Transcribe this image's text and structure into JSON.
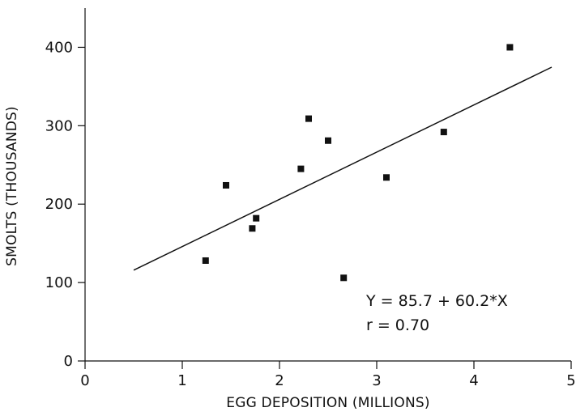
{
  "chart_data": {
    "type": "scatter",
    "title": "",
    "xlabel": "EGG DEPOSITION (MILLIONS)",
    "ylabel": "SMOLTS (THOUSANDS)",
    "xlim": [
      0,
      5
    ],
    "ylim": [
      0,
      450
    ],
    "x_ticks": [
      0,
      1,
      2,
      3,
      4,
      5
    ],
    "y_ticks": [
      0,
      100,
      200,
      300,
      400
    ],
    "grid": false,
    "series": [
      {
        "x": [
          1.24,
          1.45,
          1.72,
          1.76,
          2.22,
          2.3,
          2.5,
          2.66,
          3.1,
          3.69,
          4.37
        ],
        "y": [
          128,
          224,
          169,
          182,
          245,
          309,
          281,
          106,
          234,
          292,
          400
        ]
      }
    ],
    "fit_line": {
      "intercept": 85.7,
      "slope": 60.2,
      "x_range": [
        0.5,
        4.8
      ]
    },
    "annotations": {
      "equation": "Y = 85.7 + 60.2*X",
      "correlation": "r = 0.70"
    },
    "colors": {
      "axes": "#111111",
      "points": "#111111",
      "line": "#111111"
    }
  }
}
